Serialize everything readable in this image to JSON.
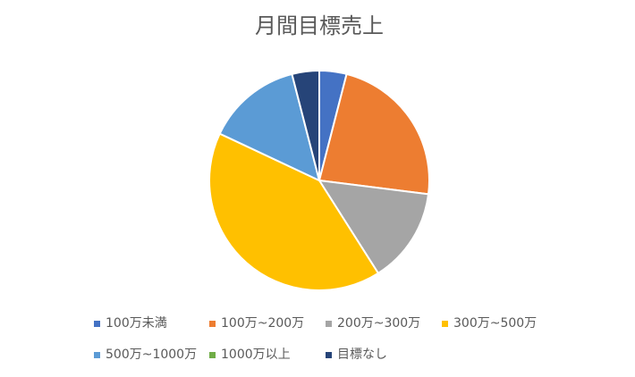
{
  "chart_data": {
    "type": "pie",
    "title": "月間目標売上",
    "categories": [
      "100万未満",
      "100万~200万",
      "200万~300万",
      "300万~500万",
      "500万~1000万",
      "1000万以上",
      "目標なし"
    ],
    "values": [
      4,
      23,
      14,
      41,
      14,
      0,
      4
    ],
    "colors": [
      "#4472c4",
      "#ed7d31",
      "#a5a5a5",
      "#ffc000",
      "#5b9bd5",
      "#70ad47",
      "#264478"
    ],
    "legend": "bottom"
  }
}
